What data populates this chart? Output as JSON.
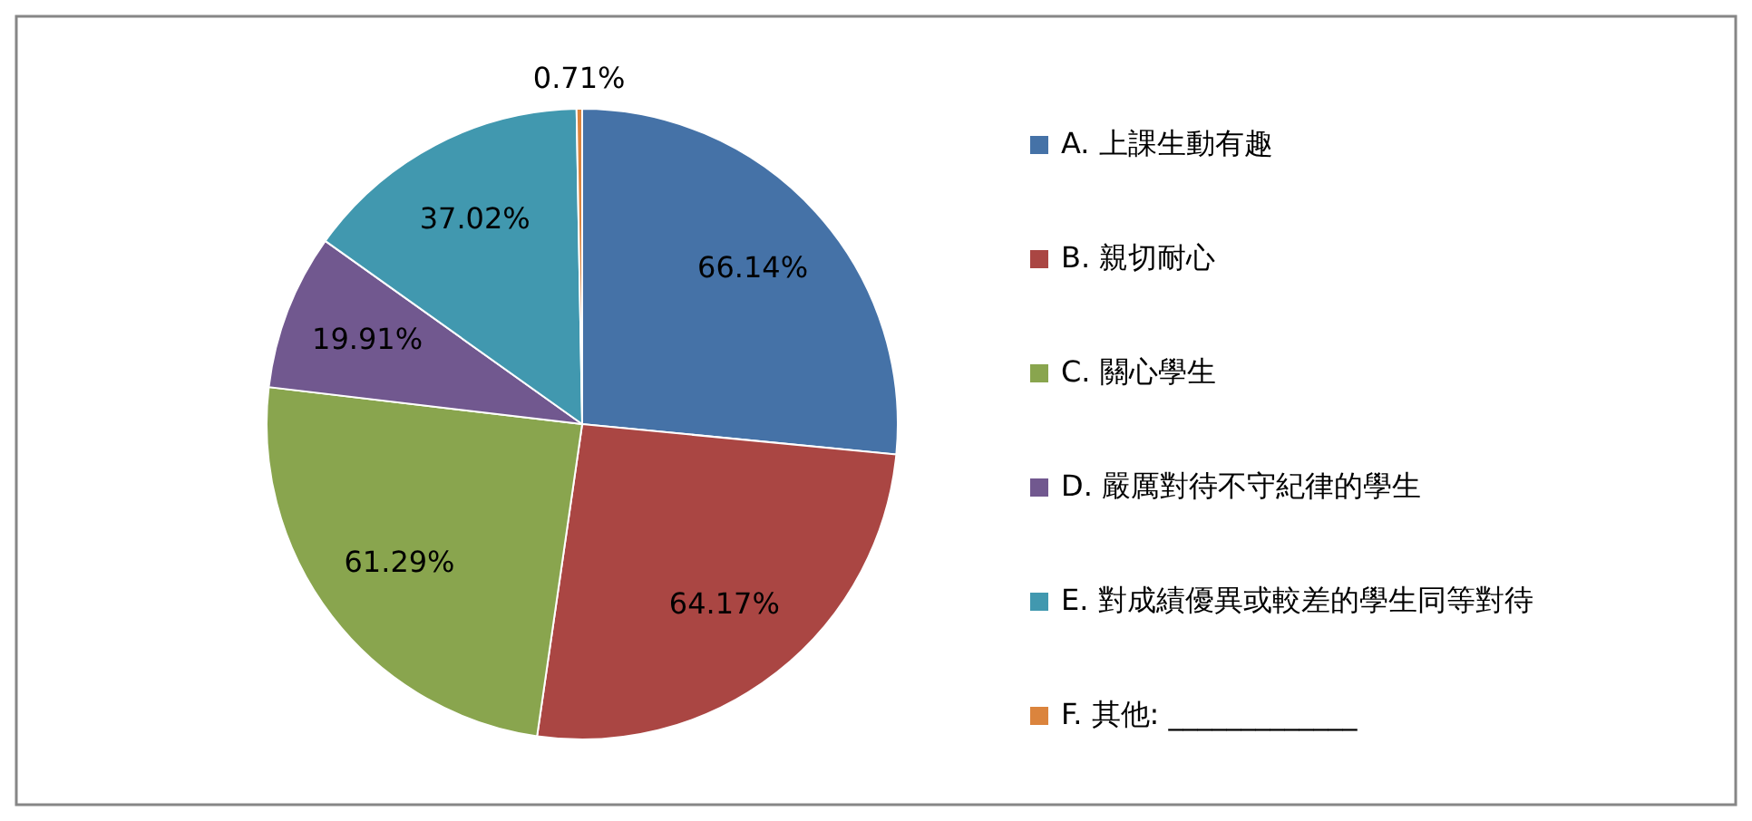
{
  "chart_data": {
    "type": "pie",
    "categories": [
      "A. 上課生動有趣",
      "B. 親切耐心",
      "C. 關心學生",
      "D. 嚴厲對待不守紀律的學生",
      "E. 對成績優異或較差的學生同等對待",
      "F. 其他: _____________"
    ],
    "values": [
      66.14,
      64.17,
      61.29,
      19.91,
      37.02,
      0.71
    ],
    "colors": [
      "#4572a7",
      "#aa4643",
      "#89a54e",
      "#71588f",
      "#4198af",
      "#db843d"
    ],
    "value_labels": [
      "66.14%",
      "64.17%",
      "61.29%",
      "19.91%",
      "37.02%",
      "0.71%"
    ],
    "legend": "right"
  }
}
